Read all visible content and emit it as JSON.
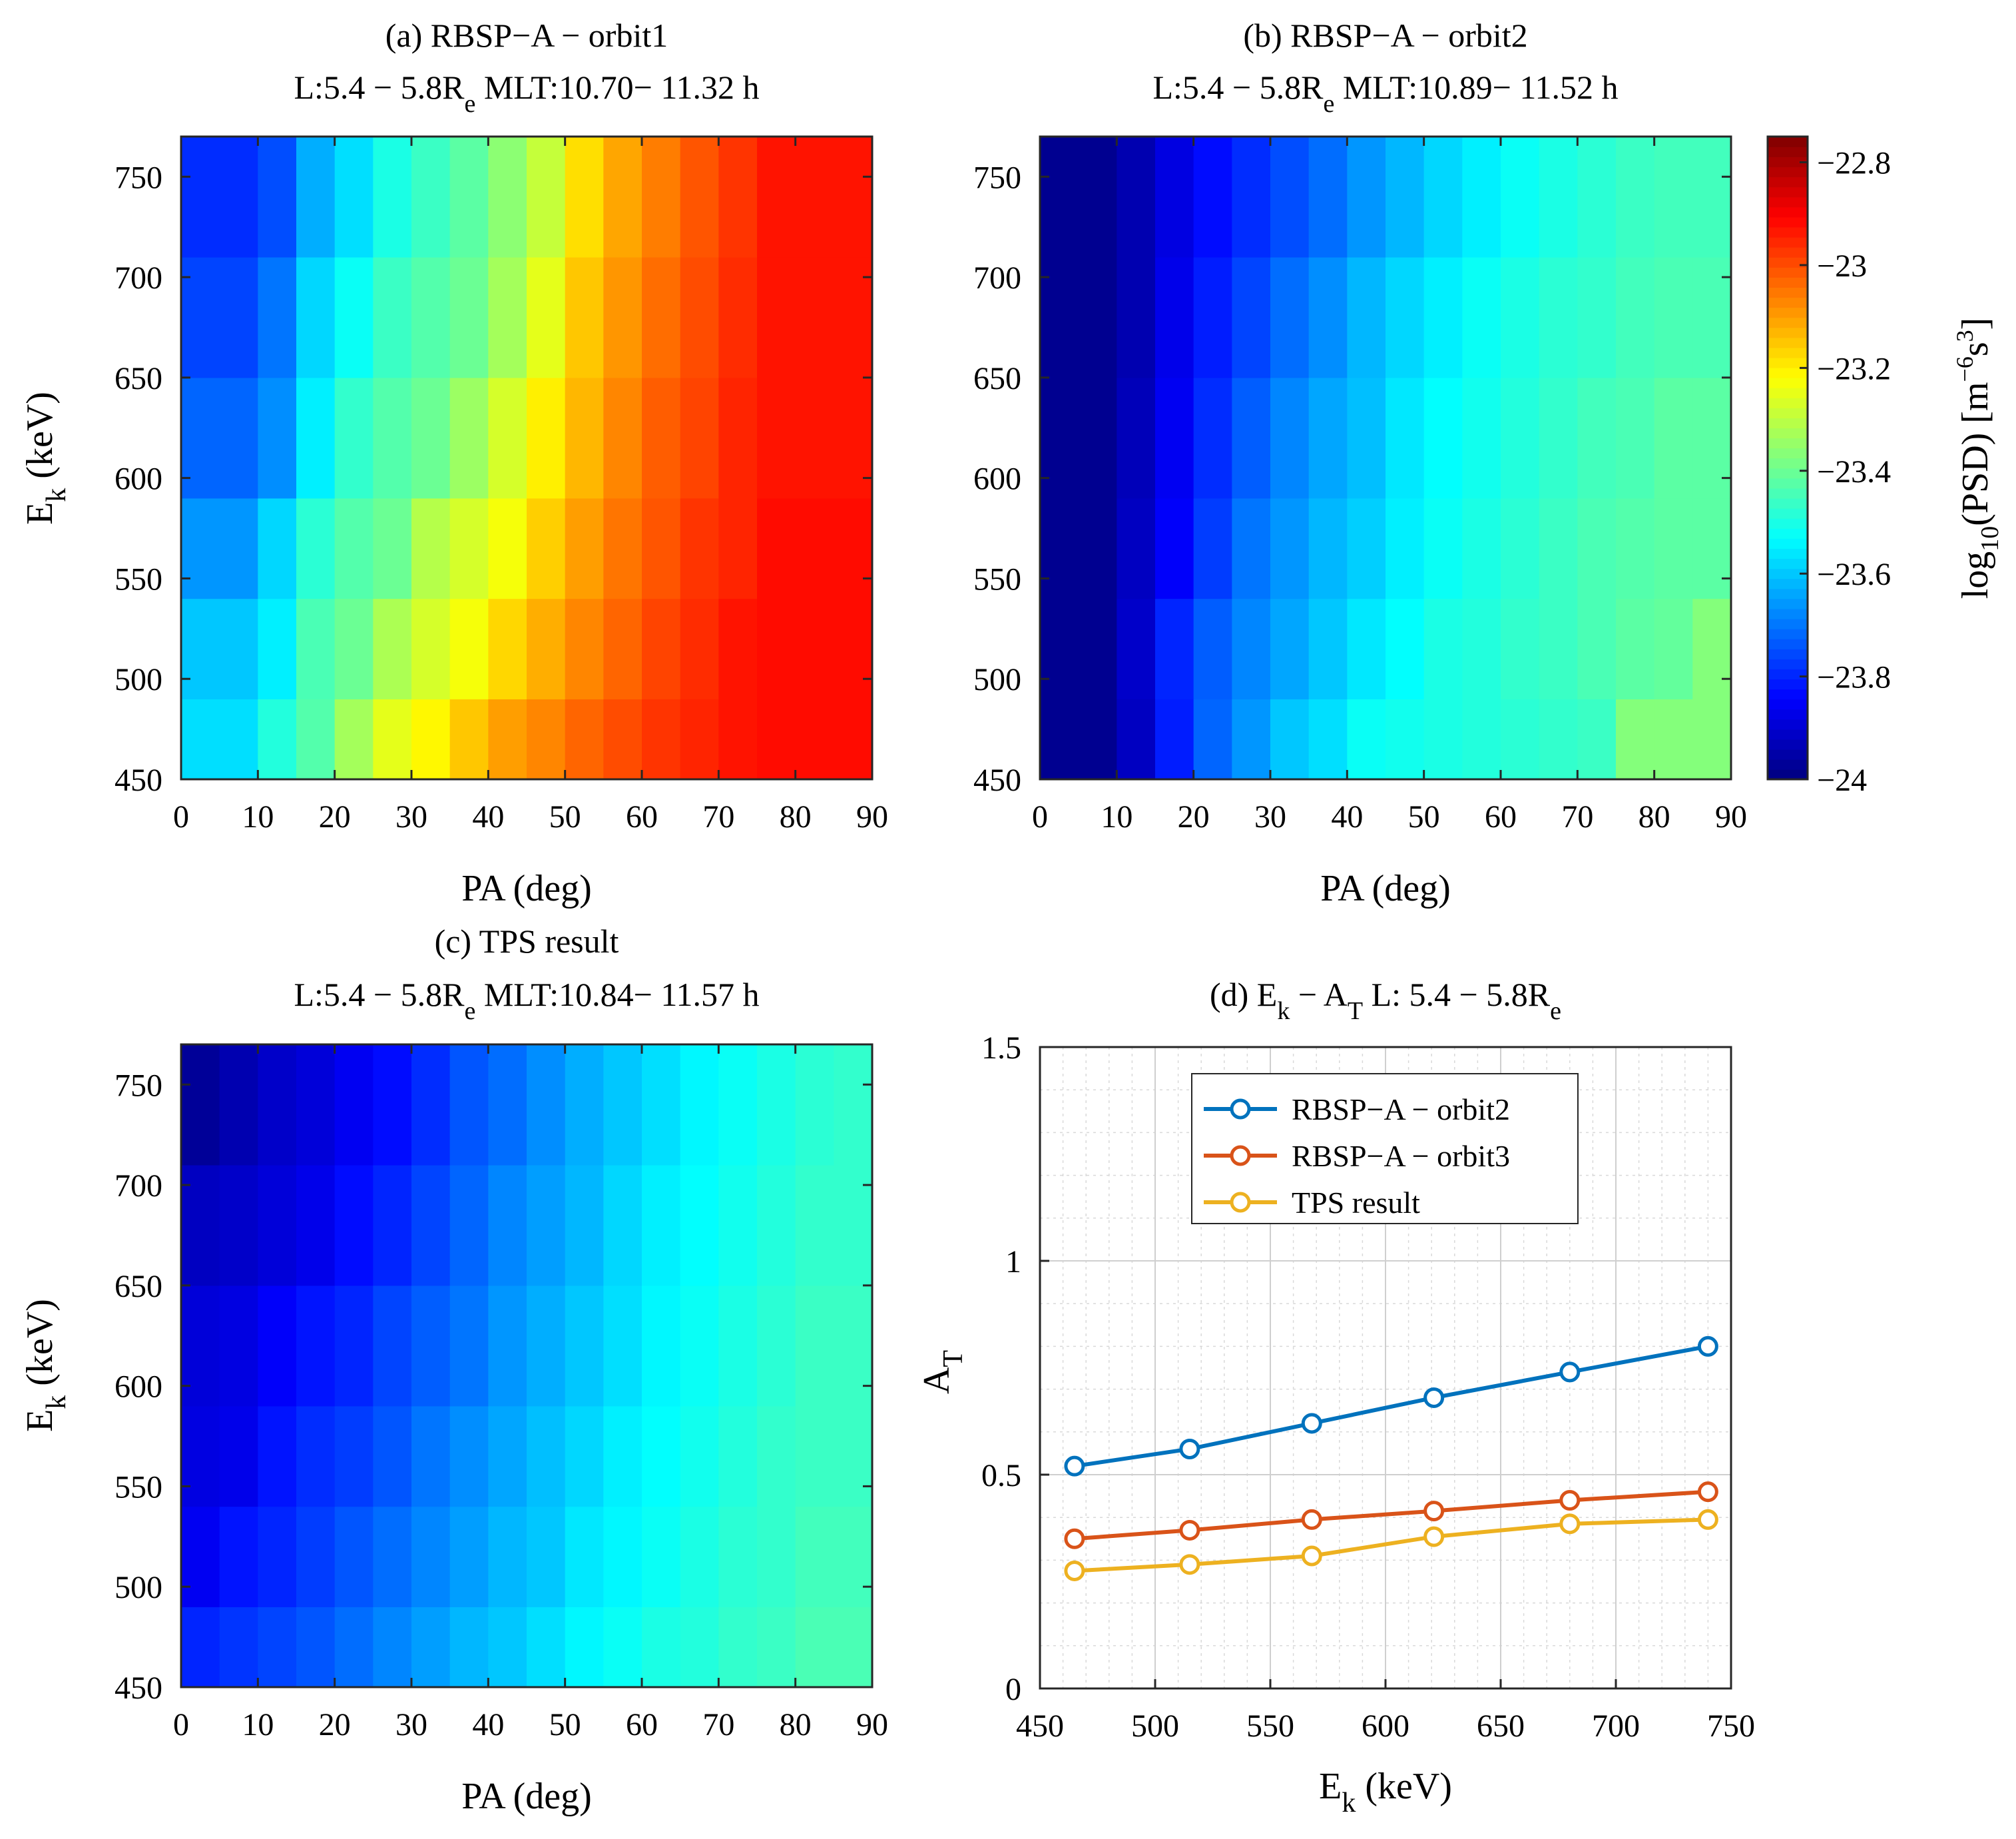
{
  "figure": {
    "panels": [
      {
        "id": "a",
        "title_main": "(a) RBSP−A − orbit1",
        "title_sub_prefix": "L:5.4 − 5.8R",
        "title_sub_sub": "e",
        "title_sub_suffix": " MLT:10.70− 11.32 h",
        "xlabel": "PA (deg)",
        "ylabel_main": "E",
        "ylabel_sub": "k",
        "ylabel_suffix": " (keV)"
      },
      {
        "id": "b",
        "title_main": "(b) RBSP−A − orbit2",
        "title_sub_prefix": "L:5.4 − 5.8R",
        "title_sub_sub": "e",
        "title_sub_suffix": " MLT:10.89− 11.52 h",
        "xlabel": "PA (deg)",
        "ylabel_main": "",
        "ylabel_sub": "",
        "ylabel_suffix": ""
      },
      {
        "id": "c",
        "title_main": "(c) TPS result",
        "title_sub_prefix": "L:5.4 − 5.8R",
        "title_sub_sub": "e",
        "title_sub_suffix": " MLT:10.84− 11.57 h",
        "xlabel": "PA (deg)",
        "ylabel_main": "E",
        "ylabel_sub": "k",
        "ylabel_suffix": " (keV)"
      },
      {
        "id": "d",
        "title_p1": "(d) E",
        "title_s1": "k",
        "title_p2": " − A",
        "title_s2": "T",
        "title_p3": " L: 5.4 − 5.8R",
        "title_s3": "e",
        "xlabel_main": "E",
        "xlabel_sub": "k",
        "xlabel_suffix": " (keV)",
        "ylabel_main": "A",
        "ylabel_sub": "T"
      }
    ],
    "colorbar": {
      "label_p1": "log",
      "label_s1": "10",
      "label_p2": "(PSD) [m",
      "label_s2": "−6",
      "label_p3": "s",
      "label_s3": "3",
      "label_p4": "]"
    }
  },
  "colors": {
    "orbit2": "#0072BD",
    "orbit3": "#D95319",
    "tps": "#EDB120"
  },
  "chart_data": [
    {
      "type": "heatmap",
      "panel": "a",
      "title": "(a) RBSP−A − orbit1 L:5.4 − 5.8Re MLT:10.70− 11.32 h",
      "xlabel": "PA (deg)",
      "ylabel": "Ek (keV)",
      "xlim": [
        0,
        90
      ],
      "ylim": [
        450,
        770
      ],
      "xticks": [
        0,
        10,
        20,
        30,
        40,
        50,
        60,
        70,
        80,
        90
      ],
      "yticks": [
        450,
        500,
        550,
        600,
        650,
        700,
        750
      ],
      "x_edges": [
        0,
        10,
        15,
        20,
        25,
        30,
        35,
        40,
        45,
        50,
        55,
        60,
        65,
        70,
        75,
        90
      ],
      "y_edges": [
        450,
        490,
        540,
        590,
        650,
        710,
        770
      ],
      "values": [
        [
          -23.57,
          -23.49,
          -23.43,
          -23.33,
          -23.25,
          -23.21,
          -23.15,
          -23.1,
          -23.07,
          -23.03,
          -23.0,
          -22.97,
          -22.95,
          -22.93,
          -22.92
        ],
        [
          -23.6,
          -23.55,
          -23.44,
          -23.4,
          -23.32,
          -23.27,
          -23.23,
          -23.17,
          -23.12,
          -23.07,
          -23.03,
          -22.99,
          -22.96,
          -22.93,
          -22.92
        ],
        [
          -23.66,
          -23.58,
          -23.48,
          -23.43,
          -23.4,
          -23.31,
          -23.27,
          -23.23,
          -23.16,
          -23.1,
          -23.05,
          -23.01,
          -22.97,
          -22.95,
          -22.92
        ],
        [
          -23.72,
          -23.67,
          -23.55,
          -23.47,
          -23.43,
          -23.4,
          -23.34,
          -23.27,
          -23.2,
          -23.13,
          -23.07,
          -23.02,
          -22.99,
          -22.95,
          -22.93
        ],
        [
          -23.76,
          -23.7,
          -23.58,
          -23.52,
          -23.46,
          -23.43,
          -23.4,
          -23.33,
          -23.25,
          -23.15,
          -23.09,
          -23.04,
          -23.0,
          -22.96,
          -22.93
        ],
        [
          -23.79,
          -23.75,
          -23.63,
          -23.57,
          -23.5,
          -23.46,
          -23.42,
          -23.36,
          -23.29,
          -23.18,
          -23.11,
          -23.06,
          -23.01,
          -22.97,
          -22.93
        ]
      ]
    },
    {
      "type": "heatmap",
      "panel": "b",
      "title": "(b) RBSP−A − orbit2 L:5.4 − 5.8Re MLT:10.89− 11.52 h",
      "xlabel": "PA (deg)",
      "xlim": [
        0,
        90
      ],
      "ylim": [
        450,
        770
      ],
      "xticks": [
        0,
        10,
        20,
        30,
        40,
        50,
        60,
        70,
        80,
        90
      ],
      "yticks": [
        450,
        500,
        550,
        600,
        650,
        700,
        750
      ],
      "x_edges": [
        0,
        10,
        15,
        20,
        25,
        30,
        35,
        40,
        45,
        50,
        55,
        60,
        65,
        70,
        75,
        80,
        85,
        90
      ],
      "y_edges": [
        450,
        490,
        540,
        590,
        650,
        710,
        770
      ],
      "values": [
        [
          -23.98,
          -23.92,
          -23.81,
          -23.72,
          -23.66,
          -23.6,
          -23.57,
          -23.52,
          -23.51,
          -23.5,
          -23.49,
          -23.48,
          -23.47,
          -23.46,
          -23.37,
          -23.37,
          -23.37
        ],
        [
          -23.98,
          -23.91,
          -23.8,
          -23.73,
          -23.68,
          -23.64,
          -23.6,
          -23.56,
          -23.53,
          -23.5,
          -23.49,
          -23.47,
          -23.46,
          -23.44,
          -23.42,
          -23.41,
          -23.37
        ],
        [
          -23.98,
          -23.92,
          -23.85,
          -23.77,
          -23.7,
          -23.66,
          -23.62,
          -23.59,
          -23.55,
          -23.52,
          -23.5,
          -23.48,
          -23.46,
          -23.44,
          -23.43,
          -23.42,
          -23.42
        ],
        [
          -23.98,
          -23.93,
          -23.86,
          -23.79,
          -23.73,
          -23.68,
          -23.64,
          -23.61,
          -23.56,
          -23.53,
          -23.51,
          -23.49,
          -23.47,
          -23.45,
          -23.44,
          -23.42,
          -23.42
        ],
        [
          -23.98,
          -23.94,
          -23.87,
          -23.81,
          -23.76,
          -23.71,
          -23.67,
          -23.62,
          -23.58,
          -23.55,
          -23.52,
          -23.5,
          -23.48,
          -23.47,
          -23.45,
          -23.44,
          -23.44
        ],
        [
          -23.98,
          -23.94,
          -23.88,
          -23.83,
          -23.79,
          -23.75,
          -23.71,
          -23.66,
          -23.62,
          -23.58,
          -23.55,
          -23.52,
          -23.5,
          -23.48,
          -23.46,
          -23.45,
          -23.45
        ]
      ]
    },
    {
      "type": "heatmap",
      "panel": "c",
      "title": "(c) TPS result L:5.4 − 5.8Re MLT:10.84− 11.57 h",
      "xlabel": "PA (deg)",
      "ylabel": "Ek (keV)",
      "xlim": [
        0,
        90
      ],
      "ylim": [
        450,
        770
      ],
      "xticks": [
        0,
        10,
        20,
        30,
        40,
        50,
        60,
        70,
        80,
        90
      ],
      "yticks": [
        450,
        500,
        550,
        600,
        650,
        700,
        750
      ],
      "x_edges": [
        0,
        5,
        10,
        15,
        20,
        25,
        30,
        35,
        40,
        45,
        50,
        55,
        60,
        65,
        70,
        75,
        80,
        85,
        90
      ],
      "y_edges": [
        450,
        490,
        540,
        590,
        650,
        710,
        770
      ],
      "values": [
        [
          -23.8,
          -23.78,
          -23.76,
          -23.74,
          -23.71,
          -23.68,
          -23.65,
          -23.62,
          -23.6,
          -23.57,
          -23.54,
          -23.52,
          -23.5,
          -23.49,
          -23.47,
          -23.46,
          -23.44,
          -23.44
        ],
        [
          -23.86,
          -23.82,
          -23.8,
          -23.77,
          -23.74,
          -23.71,
          -23.68,
          -23.65,
          -23.62,
          -23.6,
          -23.56,
          -23.54,
          -23.52,
          -23.5,
          -23.48,
          -23.47,
          -23.45,
          -23.45
        ],
        [
          -23.88,
          -23.87,
          -23.82,
          -23.79,
          -23.77,
          -23.74,
          -23.7,
          -23.67,
          -23.64,
          -23.61,
          -23.58,
          -23.55,
          -23.53,
          -23.51,
          -23.49,
          -23.47,
          -23.46,
          -23.46
        ],
        [
          -23.89,
          -23.88,
          -23.85,
          -23.82,
          -23.8,
          -23.76,
          -23.73,
          -23.7,
          -23.66,
          -23.63,
          -23.6,
          -23.57,
          -23.54,
          -23.52,
          -23.5,
          -23.48,
          -23.46,
          -23.46
        ],
        [
          -23.92,
          -23.91,
          -23.89,
          -23.87,
          -23.83,
          -23.8,
          -23.76,
          -23.72,
          -23.68,
          -23.65,
          -23.62,
          -23.58,
          -23.55,
          -23.53,
          -23.51,
          -23.49,
          -23.47,
          -23.47
        ],
        [
          -23.97,
          -23.94,
          -23.91,
          -23.89,
          -23.86,
          -23.83,
          -23.79,
          -23.74,
          -23.71,
          -23.67,
          -23.63,
          -23.6,
          -23.57,
          -23.54,
          -23.52,
          -23.5,
          -23.48,
          -23.47
        ]
      ]
    },
    {
      "type": "line",
      "panel": "d",
      "title": "(d) Ek − AT L: 5.4 − 5.8Re",
      "xlabel": "Ek (keV)",
      "ylabel": "AT",
      "xlim": [
        450,
        750
      ],
      "ylim": [
        0,
        1.5
      ],
      "xticks": [
        450,
        500,
        550,
        600,
        650,
        700,
        750
      ],
      "yticks": [
        0,
        0.5,
        1,
        1.5
      ],
      "ytick_labels": [
        "0",
        "0.5",
        "1",
        "1.5"
      ],
      "grid": true,
      "minor_grid": true,
      "legend_position": "top-center",
      "x": [
        465,
        515,
        568,
        621,
        680,
        740
      ],
      "series": [
        {
          "name": "RBSP−A − orbit2",
          "color": "#0072BD",
          "values": [
            0.52,
            0.56,
            0.62,
            0.68,
            0.74,
            0.8
          ]
        },
        {
          "name": "RBSP−A − orbit3",
          "color": "#D95319",
          "values": [
            0.35,
            0.37,
            0.395,
            0.415,
            0.44,
            0.46
          ]
        },
        {
          "name": "TPS result",
          "color": "#EDB120",
          "values": [
            0.275,
            0.29,
            0.31,
            0.355,
            0.385,
            0.395
          ]
        }
      ]
    },
    {
      "type": "colorbar",
      "colormap": "jet",
      "range": [
        -24,
        -22.75
      ],
      "ticks": [
        -24,
        -23.8,
        -23.6,
        -23.4,
        -23.2,
        -23,
        -22.8
      ],
      "tick_labels": [
        "−24",
        "−23.8",
        "−23.6",
        "−23.4",
        "−23.2",
        "−23",
        "−22.8"
      ],
      "label": "log10(PSD) [m−6s3]"
    }
  ]
}
